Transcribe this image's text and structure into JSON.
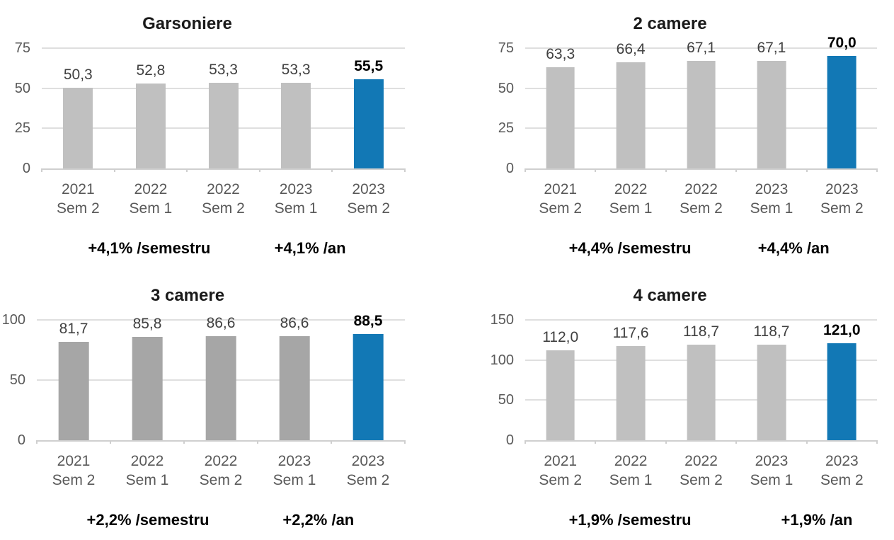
{
  "chart_data": [
    {
      "type": "bar",
      "title": "Garsoniere",
      "categories": [
        [
          "2021",
          "Sem 2"
        ],
        [
          "2022",
          "Sem 1"
        ],
        [
          "2022",
          "Sem 2"
        ],
        [
          "2023",
          "Sem 1"
        ],
        [
          "2023",
          "Sem 2"
        ]
      ],
      "values": [
        50.3,
        52.8,
        53.3,
        53.3,
        55.5
      ],
      "value_labels": [
        "50,3",
        "52,8",
        "53,3",
        "53,3",
        "55,5"
      ],
      "ylim": [
        0,
        75
      ],
      "yticks": [
        0,
        25,
        50,
        75
      ],
      "xlabel": "",
      "ylabel": "",
      "grid": true,
      "legend": "none",
      "bar_color": "#c0c0c0",
      "highlight_index": 4,
      "highlight_color": "#1278b5",
      "annotations": [
        {
          "text": "+4,1% /semestru",
          "x_percent": 29.6
        },
        {
          "text": "+4,1% /an",
          "x_percent": 73.9
        }
      ]
    },
    {
      "type": "bar",
      "title": "2 camere",
      "categories": [
        [
          "2021",
          "Sem 2"
        ],
        [
          "2022",
          "Sem 1"
        ],
        [
          "2022",
          "Sem 2"
        ],
        [
          "2023",
          "Sem 1"
        ],
        [
          "2023",
          "Sem 2"
        ]
      ],
      "values": [
        63.3,
        66.4,
        67.1,
        67.1,
        70.0
      ],
      "value_labels": [
        "63,3",
        "66,4",
        "67,1",
        "67,1",
        "70,0"
      ],
      "ylim": [
        0,
        75
      ],
      "yticks": [
        0,
        25,
        50,
        75
      ],
      "xlabel": "",
      "ylabel": "",
      "grid": true,
      "legend": "none",
      "bar_color": "#c0c0c0",
      "highlight_index": 4,
      "highlight_color": "#1278b5",
      "annotations": [
        {
          "text": "+4,4% /semestru",
          "x_percent": 29.8
        },
        {
          "text": "+4,4% /an",
          "x_percent": 76.3
        }
      ]
    },
    {
      "type": "bar",
      "title": "3 camere",
      "categories": [
        [
          "2021",
          "Sem 2"
        ],
        [
          "2022",
          "Sem 1"
        ],
        [
          "2022",
          "Sem 2"
        ],
        [
          "2023",
          "Sem 1"
        ],
        [
          "2023",
          "Sem 2"
        ]
      ],
      "values": [
        81.7,
        85.8,
        86.6,
        86.6,
        88.5
      ],
      "value_labels": [
        "81,7",
        "85,8",
        "86,6",
        "86,6",
        "88,5"
      ],
      "ylim": [
        0,
        100
      ],
      "yticks": [
        0,
        50,
        100
      ],
      "xlabel": "",
      "ylabel": "",
      "grid": true,
      "legend": "none",
      "bar_color": "#a6a6a6",
      "highlight_index": 4,
      "highlight_color": "#1278b5",
      "annotations": [
        {
          "text": "+2,2% /semestru",
          "x_percent": 30.2
        },
        {
          "text": "+2,2% /an",
          "x_percent": 76.5
        }
      ]
    },
    {
      "type": "bar",
      "title": "4 camere",
      "categories": [
        [
          "2021",
          "Sem 2"
        ],
        [
          "2022",
          "Sem 1"
        ],
        [
          "2022",
          "Sem 2"
        ],
        [
          "2023",
          "Sem 1"
        ],
        [
          "2023",
          "Sem 2"
        ]
      ],
      "values": [
        112.0,
        117.6,
        118.7,
        118.7,
        121.0
      ],
      "value_labels": [
        "112,0",
        "117,6",
        "118,7",
        "118,7",
        "121,0"
      ],
      "ylim": [
        0,
        150
      ],
      "yticks": [
        0,
        50,
        100,
        150
      ],
      "xlabel": "",
      "ylabel": "",
      "grid": true,
      "legend": "none",
      "bar_color": "#c0c0c0",
      "highlight_index": 4,
      "highlight_color": "#1278b5",
      "annotations": [
        {
          "text": "+1,9% /semestru",
          "x_percent": 29.8
        },
        {
          "text": "+1,9% /an",
          "x_percent": 82.9
        }
      ]
    }
  ]
}
